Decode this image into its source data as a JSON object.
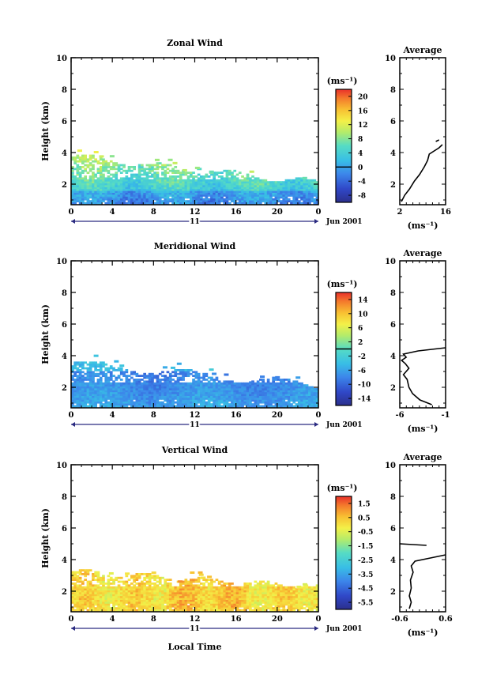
{
  "chart_data": [
    {
      "type": "heatmap",
      "title": "Zonal Wind",
      "ylabel": "Height (km)",
      "x_ticks": [
        "0",
        "4",
        "8",
        "12",
        "16",
        "20",
        "0"
      ],
      "xlim": [
        0,
        24
      ],
      "y_ticks": [
        "2",
        "4",
        "6",
        "8",
        "10"
      ],
      "ylim": [
        0.7,
        10
      ],
      "date_day": "11",
      "date_label": "Jun 2001",
      "colorbar": {
        "unit": "(ms⁻¹)",
        "ticks": [
          "20",
          "16",
          "12",
          "8",
          "4",
          "0",
          "-4",
          "-8"
        ],
        "range": [
          -10,
          22
        ],
        "zero_value": 0
      },
      "profile": {
        "title": "Average",
        "x_ticks": [
          "2",
          "16"
        ],
        "xlim": [
          2,
          16
        ],
        "y_ticks": [
          "2",
          "4",
          "6",
          "8",
          "10"
        ],
        "xlabel": "(ms⁻¹)",
        "points": [
          [
            2.5,
            0.9
          ],
          [
            3.5,
            1.3
          ],
          [
            5,
            1.7
          ],
          [
            6.5,
            2.2
          ],
          [
            8,
            2.6
          ],
          [
            9.5,
            3.1
          ],
          [
            10.5,
            3.5
          ],
          [
            11,
            3.9
          ],
          [
            12.5,
            4.1
          ],
          [
            14,
            4.3
          ],
          [
            15,
            4.5
          ]
        ],
        "upper_points": [
          [
            13,
            4.7
          ],
          [
            14,
            4.8
          ]
        ]
      }
    },
    {
      "type": "heatmap",
      "title": "Meridional Wind",
      "ylabel": "Height (km)",
      "x_ticks": [
        "0",
        "4",
        "8",
        "12",
        "16",
        "20",
        "0"
      ],
      "xlim": [
        0,
        24
      ],
      "y_ticks": [
        "2",
        "4",
        "6",
        "8",
        "10"
      ],
      "ylim": [
        0.7,
        10
      ],
      "date_day": "11",
      "date_label": "Jun 2001",
      "colorbar": {
        "unit": "(ms⁻¹)",
        "ticks": [
          "14",
          "10",
          "6",
          "2",
          "-2",
          "-6",
          "-10",
          "-14"
        ],
        "range": [
          -16,
          16
        ],
        "zero_value": 0
      },
      "profile": {
        "title": "Average",
        "x_ticks": [
          "-6",
          "-1"
        ],
        "xlim": [
          -6,
          -1
        ],
        "y_ticks": [
          "2",
          "4",
          "6",
          "8",
          "10"
        ],
        "xlabel": "(ms⁻¹)",
        "points": [
          [
            -2.5,
            0.9
          ],
          [
            -3.8,
            1.2
          ],
          [
            -4.6,
            1.6
          ],
          [
            -5.0,
            2.0
          ],
          [
            -5.2,
            2.5
          ],
          [
            -5.6,
            2.8
          ],
          [
            -5.0,
            3.2
          ],
          [
            -5.4,
            3.5
          ],
          [
            -5.8,
            3.7
          ],
          [
            -5.3,
            3.9
          ],
          [
            -5.6,
            4.1
          ],
          [
            -4.0,
            4.3
          ],
          [
            -1.0,
            4.5
          ]
        ]
      }
    },
    {
      "type": "heatmap",
      "title": "Vertical Wind",
      "ylabel": "Height (km)",
      "xlabel": "Local Time",
      "x_ticks": [
        "0",
        "4",
        "8",
        "12",
        "16",
        "20",
        "0"
      ],
      "xlim": [
        0,
        24
      ],
      "y_ticks": [
        "2",
        "4",
        "6",
        "8",
        "10"
      ],
      "ylim": [
        0.7,
        10
      ],
      "date_day": "11",
      "date_label": "Jun 2001",
      "colorbar": {
        "unit": "(ms⁻¹)",
        "ticks": [
          "1.5",
          "0.5",
          "-0.5",
          "-1.5",
          "-2.5",
          "-3.5",
          "-4.5",
          "-5.5"
        ],
        "range": [
          -6.0,
          2.0
        ],
        "zero_value": null
      },
      "profile": {
        "title": "Average",
        "x_ticks": [
          "-0.6",
          "0.6"
        ],
        "xlim": [
          -0.6,
          0.6
        ],
        "y_ticks": [
          "2",
          "4",
          "6",
          "8",
          "10"
        ],
        "xlabel": "(ms⁻¹)",
        "points": [
          [
            -0.35,
            0.9
          ],
          [
            -0.3,
            1.3
          ],
          [
            -0.35,
            1.7
          ],
          [
            -0.3,
            2.2
          ],
          [
            -0.32,
            2.7
          ],
          [
            -0.25,
            3.2
          ],
          [
            -0.3,
            3.6
          ],
          [
            -0.2,
            3.9
          ],
          [
            0.2,
            4.1
          ],
          [
            0.6,
            4.3
          ]
        ],
        "upper_points": [
          [
            -0.6,
            5.0
          ],
          [
            0.1,
            4.9
          ]
        ]
      }
    }
  ]
}
